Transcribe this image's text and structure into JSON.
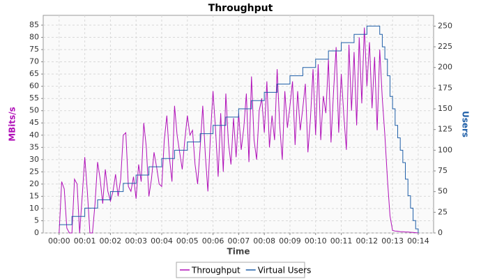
{
  "chart_data": {
    "type": "line",
    "title": "Throughput",
    "x_label": "Time",
    "y_label": "MBits/s",
    "y2_label": "Users",
    "xlim": [
      -0.62,
      14.6
    ],
    "ylim": [
      0,
      89
    ],
    "y2lim": [
      0,
      263
    ],
    "grid": true,
    "legend": "bottom",
    "xticks": [
      {
        "value": 0,
        "label": "00:00"
      },
      {
        "value": 1,
        "label": "00:01"
      },
      {
        "value": 2,
        "label": "00:02"
      },
      {
        "value": 3,
        "label": "00:03"
      },
      {
        "value": 4,
        "label": "00:04"
      },
      {
        "value": 5,
        "label": "00:05"
      },
      {
        "value": 6,
        "label": "00:06"
      },
      {
        "value": 7,
        "label": "00:07"
      },
      {
        "value": 8,
        "label": "00:08"
      },
      {
        "value": 9,
        "label": "00:09"
      },
      {
        "value": 10,
        "label": "00:10"
      },
      {
        "value": 11,
        "label": "00:11"
      },
      {
        "value": 12,
        "label": "00:12"
      },
      {
        "value": 13,
        "label": "00:13"
      },
      {
        "value": 14,
        "label": "00:14"
      }
    ],
    "yticks": [
      0,
      5,
      10,
      15,
      20,
      25,
      30,
      35,
      40,
      45,
      50,
      55,
      60,
      65,
      70,
      75,
      80,
      85
    ],
    "y2ticks": [
      0,
      25,
      50,
      75,
      100,
      125,
      150,
      175,
      200,
      225,
      250
    ],
    "series": [
      {
        "name": "Throughput",
        "color": "#b010b8",
        "x": [
          0,
          0.1,
          0.2,
          0.3,
          0.4,
          0.5,
          0.6,
          0.7,
          0.8,
          0.9,
          1,
          1.1,
          1.2,
          1.3,
          1.4,
          1.5,
          1.6,
          1.7,
          1.8,
          1.9,
          2,
          2.1,
          2.2,
          2.3,
          2.4,
          2.5,
          2.6,
          2.7,
          2.8,
          2.9,
          3,
          3.1,
          3.2,
          3.3,
          3.4,
          3.5,
          3.6,
          3.7,
          3.8,
          3.9,
          4,
          4.1,
          4.2,
          4.3,
          4.4,
          4.5,
          4.6,
          4.7,
          4.8,
          4.9,
          5,
          5.1,
          5.2,
          5.3,
          5.4,
          5.5,
          5.6,
          5.7,
          5.8,
          5.9,
          6,
          6.1,
          6.2,
          6.3,
          6.4,
          6.5,
          6.6,
          6.7,
          6.8,
          6.9,
          7,
          7.1,
          7.2,
          7.3,
          7.4,
          7.5,
          7.6,
          7.7,
          7.8,
          7.9,
          8,
          8.1,
          8.2,
          8.3,
          8.4,
          8.5,
          8.6,
          8.7,
          8.8,
          8.9,
          9,
          9.1,
          9.2,
          9.3,
          9.4,
          9.5,
          9.6,
          9.7,
          9.8,
          9.9,
          10,
          10.1,
          10.2,
          10.3,
          10.4,
          10.5,
          10.6,
          10.7,
          10.8,
          10.9,
          11,
          11.1,
          11.2,
          11.3,
          11.4,
          11.5,
          11.6,
          11.7,
          11.8,
          11.9,
          12,
          12.1,
          12.2,
          12.3,
          12.4,
          12.5,
          12.6,
          12.7,
          12.8,
          12.9,
          13,
          13.1,
          13.2,
          13.3,
          13.4,
          13.5,
          13.6,
          13.7,
          13.8,
          13.9,
          14
        ],
        "values": [
          0,
          21,
          18,
          2,
          0,
          0,
          22,
          20,
          0,
          15,
          31,
          17,
          0,
          0,
          12,
          29,
          22,
          12,
          26,
          17,
          13,
          17,
          24,
          15,
          22,
          40,
          41,
          19,
          17,
          23,
          14,
          28,
          21,
          45,
          35,
          15,
          22,
          33,
          27,
          20,
          19,
          38,
          48,
          31,
          21,
          52,
          40,
          33,
          26,
          38,
          48,
          40,
          42,
          28,
          20,
          35,
          52,
          32,
          17,
          40,
          58,
          42,
          23,
          49,
          25,
          57,
          37,
          28,
          47,
          31,
          49,
          34,
          43,
          57,
          29,
          64,
          38,
          30,
          50,
          55,
          41,
          62,
          35,
          48,
          38,
          67,
          44,
          30,
          58,
          43,
          52,
          62,
          36,
          58,
          42,
          51,
          61,
          33,
          47,
          67,
          40,
          69,
          38,
          56,
          49,
          71,
          37,
          58,
          76,
          41,
          65,
          48,
          34,
          77,
          50,
          74,
          44,
          80,
          53,
          84,
          60,
          78,
          51,
          72,
          42,
          75,
          55,
          40,
          22,
          7,
          1,
          0.8,
          0.7,
          0.5,
          0.5,
          0.4,
          0.4,
          0.3,
          0.2,
          0.1,
          0
        ]
      },
      {
        "name": "Virtual Users",
        "color": "#1f5fa8",
        "axis": "y2",
        "step": true,
        "x": [
          0,
          0.5,
          1,
          1.5,
          2,
          2.5,
          3,
          3.5,
          4,
          4.5,
          5,
          5.5,
          6,
          6.5,
          7,
          7.5,
          8,
          8.5,
          9,
          9.5,
          10,
          10.5,
          11,
          11.5,
          12,
          12.4,
          12.5,
          12.6,
          12.7,
          12.8,
          12.9,
          13,
          13.1,
          13.2,
          13.3,
          13.4,
          13.5,
          13.6,
          13.7,
          13.8,
          13.9,
          14
        ],
        "values": [
          10,
          20,
          30,
          40,
          50,
          60,
          70,
          80,
          90,
          100,
          110,
          120,
          130,
          140,
          150,
          160,
          170,
          180,
          190,
          200,
          210,
          220,
          230,
          240,
          250,
          250,
          240,
          225,
          210,
          190,
          165,
          150,
          130,
          115,
          100,
          85,
          65,
          45,
          30,
          15,
          5,
          0
        ]
      }
    ]
  }
}
